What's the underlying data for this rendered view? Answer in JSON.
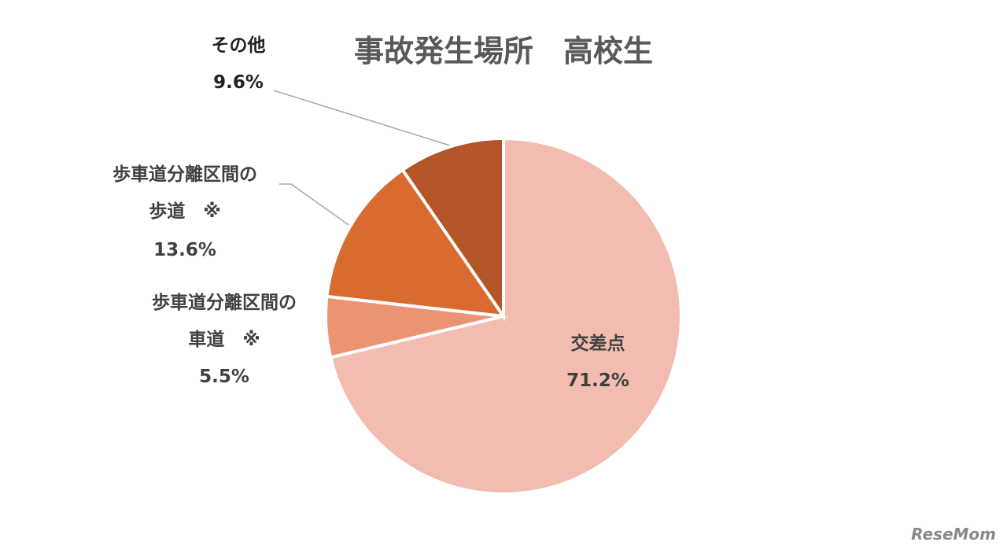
{
  "chart_data": {
    "type": "pie",
    "title": "事故発生場所　高校生",
    "categories": [
      "交差点",
      "歩車道分離区間の\n車道　※",
      "歩車道分離区間の\n歩道　※",
      "その他"
    ],
    "values": [
      71.2,
      5.5,
      13.6,
      9.6
    ],
    "value_labels": [
      "71.2%",
      "5.5%",
      "13.6%",
      "9.6%"
    ],
    "colors": [
      "#f2bdb0",
      "#ea9473",
      "#d96a30",
      "#b35527"
    ]
  },
  "watermark": "ReseMom"
}
